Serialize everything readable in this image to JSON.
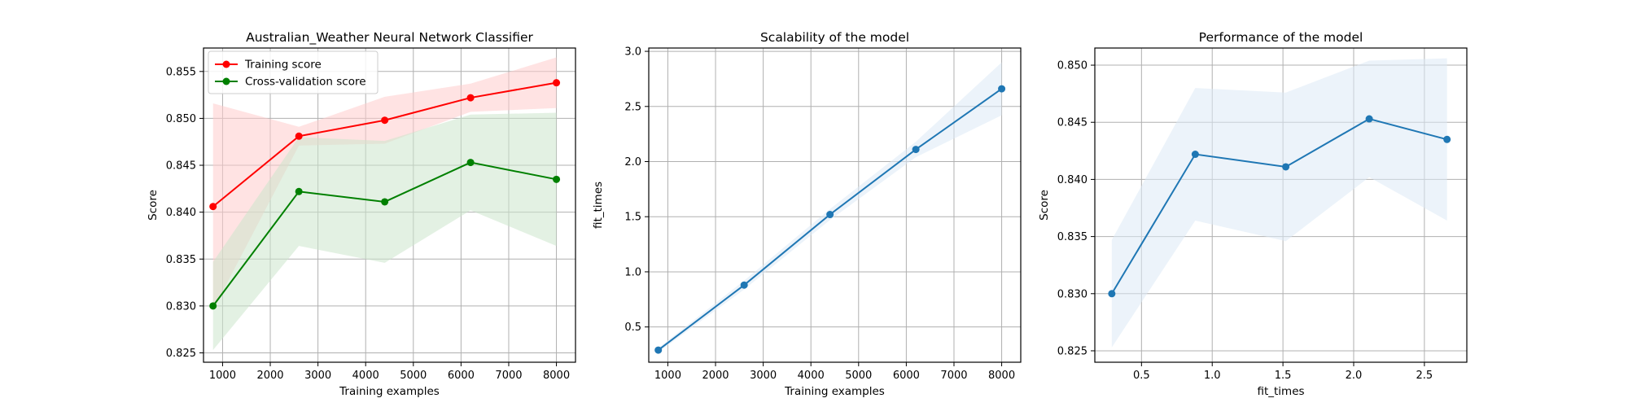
{
  "chart_data": [
    {
      "type": "line",
      "title": "Australian_Weather Neural Network Classifier",
      "xlabel": "Training examples",
      "ylabel": "Score",
      "xlim": [
        600,
        8400
      ],
      "ylim": [
        0.824,
        0.8575
      ],
      "xticks": [
        1000,
        2000,
        3000,
        4000,
        5000,
        6000,
        7000,
        8000
      ],
      "yticks": [
        0.825,
        0.83,
        0.835,
        0.84,
        0.845,
        0.85,
        0.855
      ],
      "grid": true,
      "legend_position": "top-left",
      "series": [
        {
          "name": "Training score",
          "color": "#ff0000",
          "band_color": "#ffcccc",
          "x": [
            800,
            2600,
            4400,
            6200,
            8000
          ],
          "y": [
            0.8406,
            0.8481,
            0.8498,
            0.8522,
            0.8538
          ],
          "band_lower": [
            0.8296,
            0.8471,
            0.8473,
            0.8507,
            0.8511
          ],
          "band_upper": [
            0.8516,
            0.8491,
            0.8523,
            0.8537,
            0.8565
          ]
        },
        {
          "name": "Cross-validation score",
          "color": "#008000",
          "band_color": "#cce6cc",
          "x": [
            800,
            2600,
            4400,
            6200,
            8000
          ],
          "y": [
            0.83,
            0.8422,
            0.8411,
            0.8453,
            0.8435
          ],
          "band_lower": [
            0.8253,
            0.8364,
            0.8346,
            0.8402,
            0.8364
          ],
          "band_upper": [
            0.8347,
            0.848,
            0.8476,
            0.8504,
            0.8506
          ]
        }
      ]
    },
    {
      "type": "line",
      "title": "Scalability of the model",
      "xlabel": "Training examples",
      "ylabel": "fit_times",
      "xlim": [
        600,
        8400
      ],
      "ylim": [
        0.18,
        3.03
      ],
      "xticks": [
        1000,
        2000,
        3000,
        4000,
        5000,
        6000,
        7000,
        8000
      ],
      "yticks": [
        0.5,
        1.0,
        1.5,
        2.0,
        2.5,
        3.0
      ],
      "grid": true,
      "series": [
        {
          "color": "#1f77b4",
          "band_color": "#dce9f5",
          "x": [
            800,
            2600,
            4400,
            6200,
            8000
          ],
          "y": [
            0.29,
            0.88,
            1.52,
            2.11,
            2.66
          ],
          "band_lower": [
            0.27,
            0.84,
            1.47,
            2.04,
            2.42
          ],
          "band_upper": [
            0.31,
            0.92,
            1.57,
            2.18,
            2.9
          ]
        }
      ]
    },
    {
      "type": "line",
      "title": "Performance of the model",
      "xlabel": "fit_times",
      "ylabel": "Score",
      "xlim": [
        0.17,
        2.8
      ],
      "ylim": [
        0.824,
        0.8515
      ],
      "xticks": [
        0.5,
        1.0,
        1.5,
        2.0,
        2.5
      ],
      "yticks": [
        0.825,
        0.83,
        0.835,
        0.84,
        0.845,
        0.85
      ],
      "grid": true,
      "series": [
        {
          "color": "#1f77b4",
          "band_color": "#dce9f5",
          "x": [
            0.29,
            0.88,
            1.52,
            2.11,
            2.66
          ],
          "y": [
            0.83,
            0.8422,
            0.8411,
            0.8453,
            0.8435
          ],
          "band_lower": [
            0.8253,
            0.8364,
            0.8346,
            0.8402,
            0.8364
          ],
          "band_upper": [
            0.8347,
            0.848,
            0.8476,
            0.8504,
            0.8506
          ]
        }
      ]
    }
  ]
}
